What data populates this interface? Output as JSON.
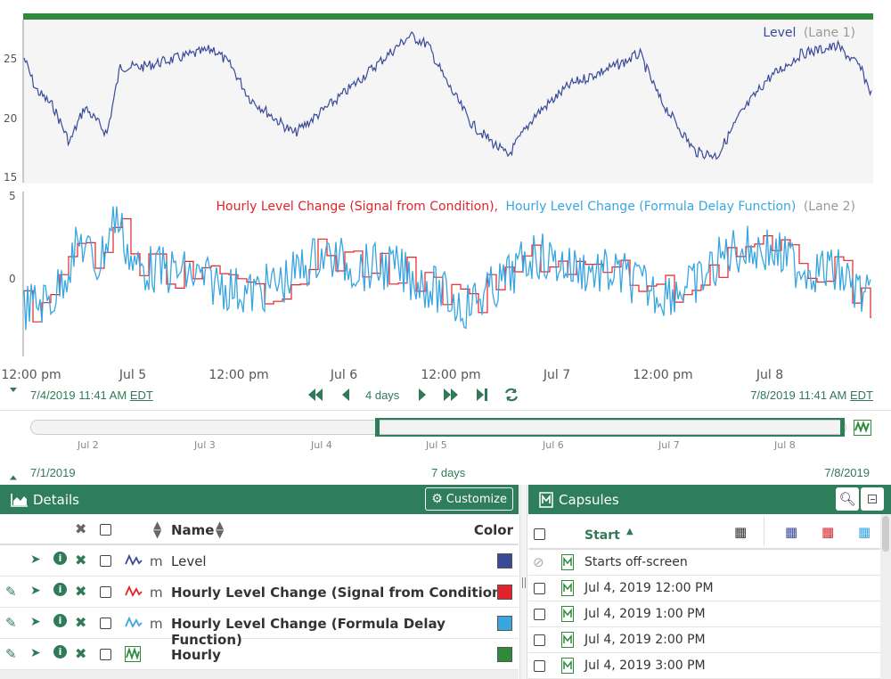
{
  "lane1": {
    "title": "Level",
    "lane_label": "(Lane 1)",
    "y_ticks": [
      "25",
      "20",
      "15"
    ],
    "series_color": "#3a4a9a"
  },
  "lane2": {
    "title_a": "Hourly Level Change (Signal from Condition),",
    "title_b": "Hourly Level Change (Formula Delay Function)",
    "lane_label": "(Lane 2)",
    "y_ticks": [
      "5",
      "0"
    ],
    "color_a": "#e0242b",
    "color_b": "#3aa6df"
  },
  "x_ticks": [
    "12:00 pm",
    "Jul 5",
    "12:00 pm",
    "Jul 6",
    "12:00 pm",
    "Jul 7",
    "12:00 pm",
    "Jul 8"
  ],
  "display_range": {
    "start": "7/4/2019 11:41 AM",
    "start_tz": "EDT",
    "end": "7/8/2019 11:41 AM",
    "end_tz": "EDT",
    "duration": "4 days"
  },
  "investigate_range": {
    "start": "7/1/2019",
    "end": "7/8/2019",
    "duration": "7 days",
    "timeline_labels": [
      "Jul 2",
      "Jul 3",
      "Jul 4",
      "Jul 5",
      "Jul 6",
      "Jul 7",
      "Jul 8"
    ]
  },
  "details": {
    "title": "Details",
    "customize": "Customize",
    "col_name": "Name",
    "col_color": "Color",
    "items": [
      {
        "unit": "m",
        "name": "Level",
        "color": "#3a4a9a",
        "bold": false
      },
      {
        "unit": "m",
        "name": "Hourly Level Change (Signal from Condition)",
        "color": "#e0242b",
        "bold": true
      },
      {
        "unit": "m",
        "name": "Hourly Level Change (Formula Delay Function)",
        "color": "#3aa6df",
        "bold": true
      },
      {
        "unit": "",
        "name": "Hourly",
        "color": "#2f8a3c",
        "bold": true
      }
    ]
  },
  "capsules": {
    "title": "Capsules",
    "col_start": "Start",
    "rows": [
      "Starts off-screen",
      "Jul 4, 2019 12:00 PM",
      "Jul 4, 2019 1:00 PM",
      "Jul 4, 2019 2:00 PM",
      "Jul 4, 2019 3:00 PM"
    ]
  }
}
